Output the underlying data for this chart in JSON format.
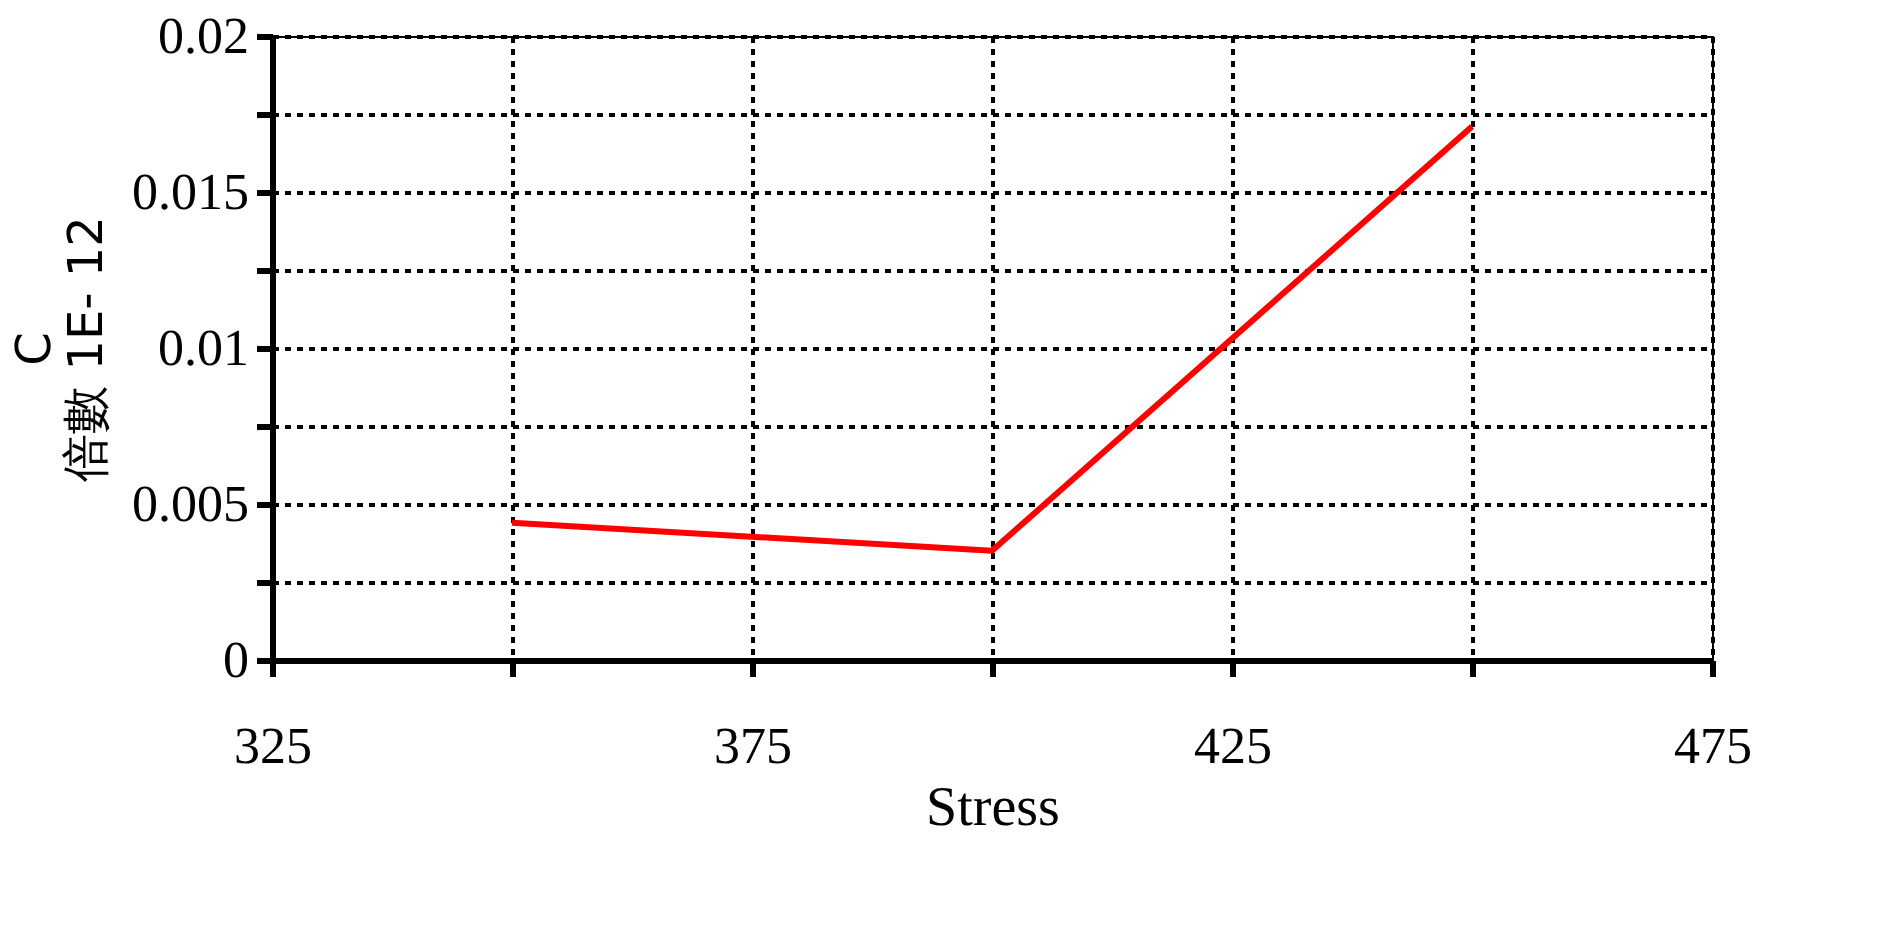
{
  "chart_data": {
    "type": "line",
    "xlabel": "Stress",
    "ylabel": "C\n倍數 1E- 12",
    "x": [
      350,
      400,
      450
    ],
    "series": [
      {
        "color": "#ff0000",
        "values": [
          0.0044,
          0.0035,
          0.0171
        ]
      }
    ],
    "xlim": [
      325,
      475
    ],
    "xticks": [
      325,
      {
        "value": 350,
        "label": null
      },
      375,
      {
        "value": 400,
        "label": null
      },
      425,
      {
        "value": 450,
        "label": null
      },
      475
    ],
    "ylim": [
      0,
      0.02
    ],
    "yticks": [
      0,
      {
        "value": 0.0025,
        "label": null
      },
      0.005,
      {
        "value": 0.0075,
        "label": null
      },
      0.01,
      {
        "value": 0.0125,
        "label": null
      },
      0.015,
      {
        "value": 0.0175,
        "label": null
      },
      0.02
    ],
    "grid": true,
    "legend": false
  }
}
